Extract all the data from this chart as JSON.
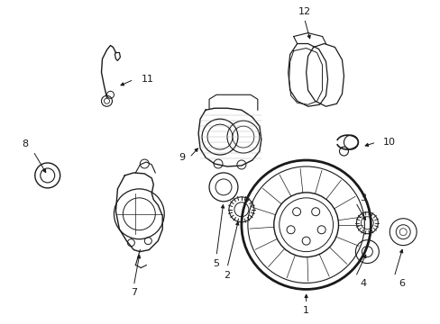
{
  "background_color": "#ffffff",
  "line_color": "#1a1a1a",
  "fig_width": 4.89,
  "fig_height": 3.6,
  "dpi": 100,
  "parts": [
    {
      "id": 1,
      "label": "1"
    },
    {
      "id": 2,
      "label": "2"
    },
    {
      "id": 3,
      "label": "3"
    },
    {
      "id": 4,
      "label": "4"
    },
    {
      "id": 5,
      "label": "5"
    },
    {
      "id": 6,
      "label": "6"
    },
    {
      "id": 7,
      "label": "7"
    },
    {
      "id": 8,
      "label": "8"
    },
    {
      "id": 9,
      "label": "9"
    },
    {
      "id": 10,
      "label": "10"
    },
    {
      "id": 11,
      "label": "11"
    },
    {
      "id": 12,
      "label": "12"
    }
  ]
}
